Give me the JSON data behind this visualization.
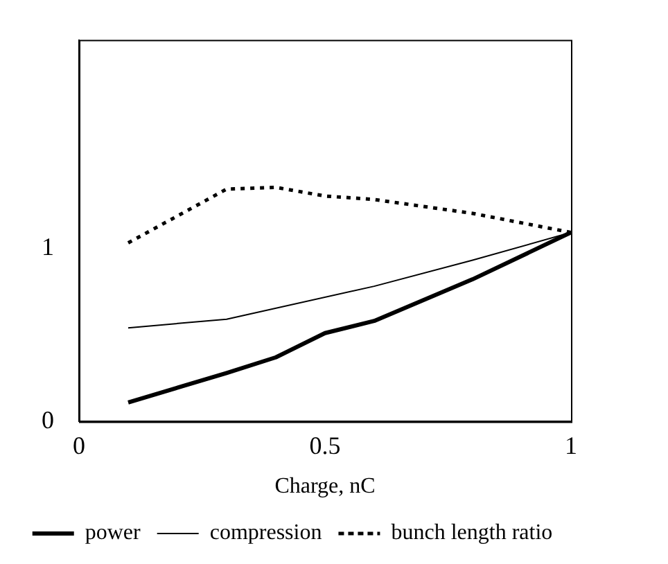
{
  "chart_data": {
    "type": "line",
    "xlabel": "Charge, nC",
    "xlim": [
      0,
      1
    ],
    "xticks": [
      0,
      0.5,
      1
    ],
    "ylim": [
      0,
      2.2
    ],
    "yticks": [
      0,
      1
    ],
    "grid": false,
    "legend": "bottom",
    "marker": "none",
    "series": [
      {
        "name": "power",
        "color": "#000000",
        "line_style": "solid",
        "x": [
          0.1,
          0.3,
          0.4,
          0.5,
          0.6,
          0.8,
          1.0
        ],
        "values": [
          0.11,
          0.28,
          0.37,
          0.51,
          0.58,
          0.82,
          1.09
        ]
      },
      {
        "name": "compression",
        "color": "#000000",
        "line_style": "solid",
        "x": [
          0.1,
          0.3,
          0.6,
          0.8,
          1.0
        ],
        "values": [
          0.54,
          0.59,
          0.78,
          0.93,
          1.09
        ]
      },
      {
        "name": "bunch length ratio",
        "color": "#000000",
        "line_style": "dotted",
        "x": [
          0.1,
          0.3,
          0.4,
          0.5,
          0.6,
          0.8,
          1.0
        ],
        "values": [
          1.03,
          1.34,
          1.35,
          1.3,
          1.28,
          1.2,
          1.09
        ]
      }
    ]
  }
}
